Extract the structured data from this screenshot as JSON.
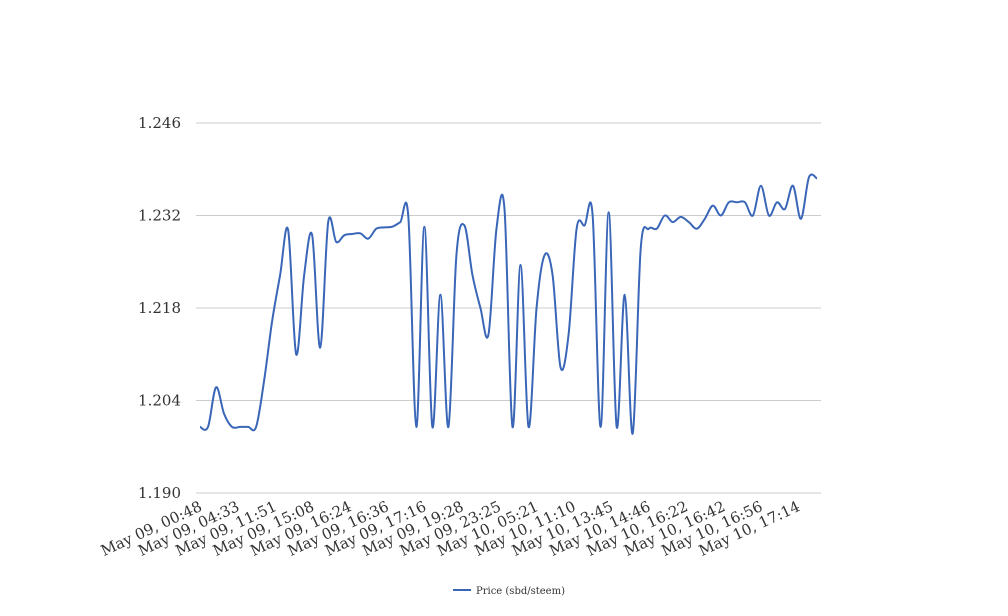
{
  "chart_data": {
    "type": "line",
    "title": "",
    "xlabel": "",
    "ylabel": "",
    "ylim": [
      1.19,
      1.246
    ],
    "yticks": [
      "1.190",
      "1.204",
      "1.218",
      "1.232",
      "1.246"
    ],
    "grid": true,
    "legend_position": "bottom",
    "x_tick_labels": [
      "May 09, 00:48",
      "May 09, 04:33",
      "May 09, 11:51",
      "May 09, 15:08",
      "May 09, 16:24",
      "May 09, 16:36",
      "May 09, 17:16",
      "May 09, 19:28",
      "May 09, 23:25",
      "May 10, 05:21",
      "May 10, 11:10",
      "May 10, 13:45",
      "May 10, 14:46",
      "May 10, 16:22",
      "May 10, 16:42",
      "May 10, 16:56",
      "May 10, 17:14"
    ],
    "series": [
      {
        "name": "Price (sbd/steem)",
        "color": "#3a66b8",
        "values": [
          1.2,
          1.2,
          1.206,
          1.202,
          1.2,
          1.2,
          1.2,
          1.2,
          1.207,
          1.216,
          1.223,
          1.2298,
          1.211,
          1.223,
          1.229,
          1.212,
          1.231,
          1.228,
          1.229,
          1.2292,
          1.2293,
          1.2285,
          1.23,
          1.2302,
          1.2303,
          1.231,
          1.2318,
          1.2,
          1.2303,
          1.2,
          1.22,
          1.2,
          1.226,
          1.2305,
          1.223,
          1.218,
          1.214,
          1.23,
          1.233,
          1.2,
          1.2245,
          1.2,
          1.218,
          1.226,
          1.223,
          1.209,
          1.214,
          1.23,
          1.2305,
          1.232,
          1.2,
          1.2325,
          1.2,
          1.22,
          1.199,
          1.227,
          1.23,
          1.23,
          1.232,
          1.231,
          1.2318,
          1.231,
          1.23,
          1.2315,
          1.2335,
          1.232,
          1.234,
          1.234,
          1.234,
          1.232,
          1.2365,
          1.232,
          1.234,
          1.233,
          1.2365,
          1.2315,
          1.2378,
          1.2376
        ]
      }
    ]
  }
}
